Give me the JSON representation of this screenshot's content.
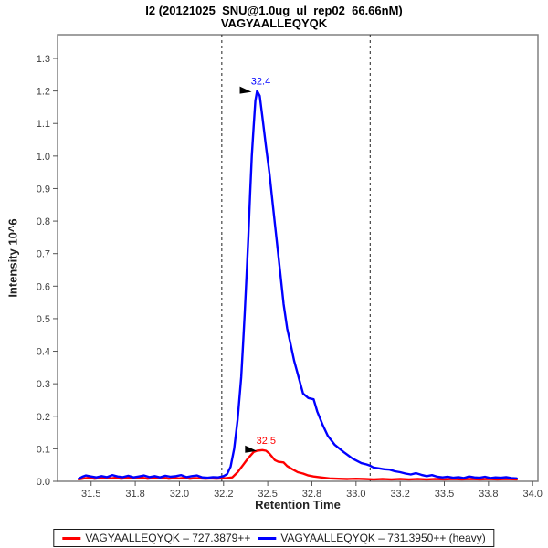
{
  "colors": {
    "frame": "#808080",
    "tick": "#555555",
    "tick_label": "#3d3d3d",
    "boundary": "#222222",
    "light_trace": "#ff0000",
    "heavy_trace": "#0000ff",
    "annotation_arrow": "#000000"
  },
  "chart_data": {
    "type": "line",
    "title": "I2 (20121025_SNU@1.0ug_ul_rep02_66.66nM)",
    "subtitle": "VAGYAALLEQYQK",
    "xlabel": "Retention Time",
    "ylabel": "Intensity 10^6",
    "xlim": [
      31.31,
      34.03
    ],
    "ylim": [
      0,
      1.373
    ],
    "grid": false,
    "legend_position": "bottom",
    "x_ticks": [
      {
        "t": 31.5,
        "label": "31.5"
      },
      {
        "t": 31.75,
        "label": "31.8"
      },
      {
        "t": 32.0,
        "label": "32.0"
      },
      {
        "t": 32.25,
        "label": "32.2"
      },
      {
        "t": 32.5,
        "label": "32.5"
      },
      {
        "t": 32.75,
        "label": "32.8"
      },
      {
        "t": 33.0,
        "label": "33.0"
      },
      {
        "t": 33.25,
        "label": "33.2"
      },
      {
        "t": 33.5,
        "label": "33.5"
      },
      {
        "t": 33.75,
        "label": "33.8"
      },
      {
        "t": 34.0,
        "label": "34.0"
      }
    ],
    "y_ticks": [
      {
        "v": 0.0,
        "label": "0.0"
      },
      {
        "v": 0.1,
        "label": "0.1"
      },
      {
        "v": 0.2,
        "label": "0.2"
      },
      {
        "v": 0.3,
        "label": "0.3"
      },
      {
        "v": 0.4,
        "label": "0.4"
      },
      {
        "v": 0.5,
        "label": "0.5"
      },
      {
        "v": 0.6,
        "label": "0.6"
      },
      {
        "v": 0.7,
        "label": "0.7"
      },
      {
        "v": 0.8,
        "label": "0.8"
      },
      {
        "v": 0.9,
        "label": "0.9"
      },
      {
        "v": 1.0,
        "label": "1.0"
      },
      {
        "v": 1.1,
        "label": "1.1"
      },
      {
        "v": 1.2,
        "label": "1.2"
      },
      {
        "v": 1.3,
        "label": "1.3"
      }
    ],
    "boundaries": [
      32.24,
      33.08
    ],
    "series": [
      {
        "id": "light",
        "name": "VAGYAALLEQYQK – 727.3879++",
        "color": "#ff0000",
        "peak_label": "32.5",
        "peak": {
          "t": 32.47,
          "v": 0.096
        },
        "points": [
          [
            31.43,
            0.006
          ],
          [
            31.46,
            0.009
          ],
          [
            31.49,
            0.011
          ],
          [
            31.52,
            0.008
          ],
          [
            31.55,
            0.01
          ],
          [
            31.58,
            0.012
          ],
          [
            31.61,
            0.009
          ],
          [
            31.64,
            0.011
          ],
          [
            31.67,
            0.008
          ],
          [
            31.7,
            0.01
          ],
          [
            31.73,
            0.012
          ],
          [
            31.76,
            0.009
          ],
          [
            31.79,
            0.011
          ],
          [
            31.82,
            0.008
          ],
          [
            31.85,
            0.01
          ],
          [
            31.88,
            0.009
          ],
          [
            31.91,
            0.011
          ],
          [
            31.94,
            0.008
          ],
          [
            31.97,
            0.01
          ],
          [
            32.0,
            0.009
          ],
          [
            32.03,
            0.011
          ],
          [
            32.06,
            0.008
          ],
          [
            32.09,
            0.01
          ],
          [
            32.12,
            0.009
          ],
          [
            32.15,
            0.008
          ],
          [
            32.18,
            0.009
          ],
          [
            32.21,
            0.008
          ],
          [
            32.24,
            0.009
          ],
          [
            32.27,
            0.01
          ],
          [
            32.3,
            0.012
          ],
          [
            32.33,
            0.028
          ],
          [
            32.36,
            0.05
          ],
          [
            32.39,
            0.072
          ],
          [
            32.42,
            0.09
          ],
          [
            32.44,
            0.094
          ],
          [
            32.47,
            0.096
          ],
          [
            32.49,
            0.094
          ],
          [
            32.51,
            0.085
          ],
          [
            32.54,
            0.065
          ],
          [
            32.56,
            0.06
          ],
          [
            32.59,
            0.058
          ],
          [
            32.61,
            0.047
          ],
          [
            32.64,
            0.037
          ],
          [
            32.67,
            0.028
          ],
          [
            32.7,
            0.024
          ],
          [
            32.73,
            0.018
          ],
          [
            32.76,
            0.015
          ],
          [
            32.8,
            0.012
          ],
          [
            32.85,
            0.009
          ],
          [
            32.9,
            0.008
          ],
          [
            32.95,
            0.007
          ],
          [
            33.0,
            0.008
          ],
          [
            33.05,
            0.007
          ],
          [
            33.1,
            0.006
          ],
          [
            33.15,
            0.007
          ],
          [
            33.2,
            0.006
          ],
          [
            33.25,
            0.007
          ],
          [
            33.3,
            0.006
          ],
          [
            33.35,
            0.007
          ],
          [
            33.4,
            0.006
          ],
          [
            33.45,
            0.007
          ],
          [
            33.5,
            0.006
          ],
          [
            33.55,
            0.007
          ],
          [
            33.6,
            0.006
          ],
          [
            33.65,
            0.007
          ],
          [
            33.7,
            0.006
          ],
          [
            33.75,
            0.007
          ],
          [
            33.8,
            0.006
          ],
          [
            33.85,
            0.007
          ],
          [
            33.91,
            0.006
          ]
        ]
      },
      {
        "id": "heavy",
        "name": "VAGYAALLEQYQK – 731.3950++ (heavy)",
        "color": "#0000ff",
        "peak_label": "32.4",
        "peak": {
          "t": 32.44,
          "v": 1.2
        },
        "points": [
          [
            31.43,
            0.008
          ],
          [
            31.45,
            0.014
          ],
          [
            31.47,
            0.018
          ],
          [
            31.5,
            0.015
          ],
          [
            31.53,
            0.012
          ],
          [
            31.56,
            0.016
          ],
          [
            31.59,
            0.013
          ],
          [
            31.62,
            0.019
          ],
          [
            31.65,
            0.015
          ],
          [
            31.68,
            0.013
          ],
          [
            31.71,
            0.017
          ],
          [
            31.74,
            0.012
          ],
          [
            31.77,
            0.015
          ],
          [
            31.8,
            0.018
          ],
          [
            31.83,
            0.013
          ],
          [
            31.86,
            0.016
          ],
          [
            31.89,
            0.012
          ],
          [
            31.92,
            0.017
          ],
          [
            31.95,
            0.014
          ],
          [
            31.98,
            0.016
          ],
          [
            32.01,
            0.019
          ],
          [
            32.04,
            0.013
          ],
          [
            32.07,
            0.016
          ],
          [
            32.1,
            0.018
          ],
          [
            32.13,
            0.012
          ],
          [
            32.16,
            0.011
          ],
          [
            32.19,
            0.013
          ],
          [
            32.22,
            0.012
          ],
          [
            32.25,
            0.016
          ],
          [
            32.27,
            0.022
          ],
          [
            32.29,
            0.045
          ],
          [
            32.31,
            0.1
          ],
          [
            32.33,
            0.19
          ],
          [
            32.35,
            0.32
          ],
          [
            32.36,
            0.42
          ],
          [
            32.37,
            0.52
          ],
          [
            32.38,
            0.63
          ],
          [
            32.39,
            0.75
          ],
          [
            32.4,
            0.88
          ],
          [
            32.41,
            1.0
          ],
          [
            32.42,
            1.09
          ],
          [
            32.43,
            1.17
          ],
          [
            32.44,
            1.2
          ],
          [
            32.455,
            1.185
          ],
          [
            32.47,
            1.12
          ],
          [
            32.49,
            1.03
          ],
          [
            32.51,
            0.945
          ],
          [
            32.53,
            0.845
          ],
          [
            32.55,
            0.745
          ],
          [
            32.57,
            0.645
          ],
          [
            32.59,
            0.545
          ],
          [
            32.61,
            0.47
          ],
          [
            32.63,
            0.42
          ],
          [
            32.65,
            0.37
          ],
          [
            32.67,
            0.33
          ],
          [
            32.7,
            0.27
          ],
          [
            32.73,
            0.256
          ],
          [
            32.76,
            0.252
          ],
          [
            32.78,
            0.215
          ],
          [
            32.81,
            0.175
          ],
          [
            32.84,
            0.14
          ],
          [
            32.88,
            0.112
          ],
          [
            32.93,
            0.09
          ],
          [
            32.98,
            0.07
          ],
          [
            33.03,
            0.056
          ],
          [
            33.06,
            0.052
          ],
          [
            33.08,
            0.048
          ],
          [
            33.1,
            0.042
          ],
          [
            33.13,
            0.04
          ],
          [
            33.16,
            0.037
          ],
          [
            33.19,
            0.036
          ],
          [
            33.22,
            0.031
          ],
          [
            33.25,
            0.028
          ],
          [
            33.28,
            0.024
          ],
          [
            33.31,
            0.021
          ],
          [
            33.34,
            0.025
          ],
          [
            33.37,
            0.02
          ],
          [
            33.4,
            0.016
          ],
          [
            33.43,
            0.019
          ],
          [
            33.46,
            0.014
          ],
          [
            33.49,
            0.012
          ],
          [
            33.52,
            0.014
          ],
          [
            33.55,
            0.011
          ],
          [
            33.58,
            0.013
          ],
          [
            33.61,
            0.01
          ],
          [
            33.64,
            0.015
          ],
          [
            33.67,
            0.012
          ],
          [
            33.7,
            0.011
          ],
          [
            33.73,
            0.014
          ],
          [
            33.76,
            0.01
          ],
          [
            33.79,
            0.012
          ],
          [
            33.82,
            0.011
          ],
          [
            33.85,
            0.013
          ],
          [
            33.88,
            0.01
          ],
          [
            33.91,
            0.009
          ]
        ]
      }
    ]
  }
}
